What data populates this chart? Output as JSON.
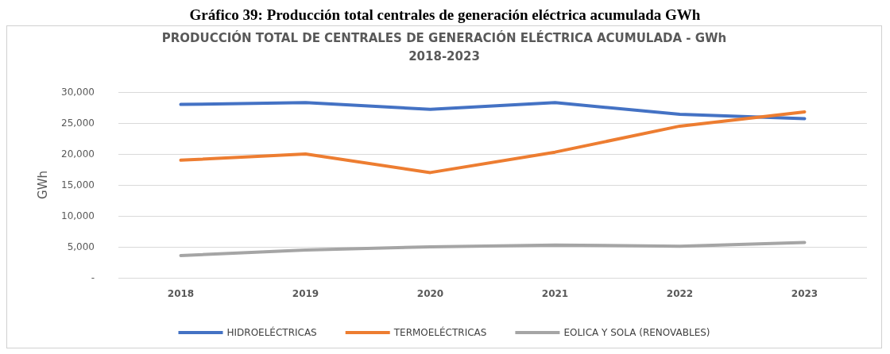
{
  "chart_data": {
    "type": "line",
    "title": "PRODUCCIÓN TOTAL DE CENTRALES DE GENERACIÓN ELÉCTRICA ACUMULADA - GWh",
    "subtitle": "2018-2023",
    "annotations": [
      "Gráfico 39: Producción total centrales de generación eléctrica acumulada GWh"
    ],
    "ylabel": "GWh",
    "categories": [
      "2018",
      "2019",
      "2020",
      "2021",
      "2022",
      "2023"
    ],
    "series": [
      {
        "name": "HIDROELÉCTRICAS",
        "color": "#4472c4",
        "values": [
          28000,
          28300,
          27200,
          28300,
          26400,
          25700
        ]
      },
      {
        "name": "TERMOELÉCTRICAS",
        "color": "#ed7d31",
        "values": [
          19000,
          20000,
          17000,
          20300,
          24500,
          26800
        ]
      },
      {
        "name": "EOLICA Y SOLA (RENOVABLES)",
        "color": "#a5a5a5",
        "values": [
          3600,
          4500,
          5000,
          5300,
          5100,
          5700
        ]
      }
    ],
    "ylim": [
      0,
      30000
    ],
    "yticks": [
      {
        "value": 0,
        "label": "-"
      },
      {
        "value": 5000,
        "label": "5,000"
      },
      {
        "value": 10000,
        "label": "10,000"
      },
      {
        "value": 15000,
        "label": "15,000"
      },
      {
        "value": 20000,
        "label": "20,000"
      },
      {
        "value": 25000,
        "label": "25,000"
      },
      {
        "value": 30000,
        "label": "30,000"
      }
    ],
    "grid": "y",
    "legend": "bottom",
    "marker": "none",
    "line_style": "solid"
  }
}
